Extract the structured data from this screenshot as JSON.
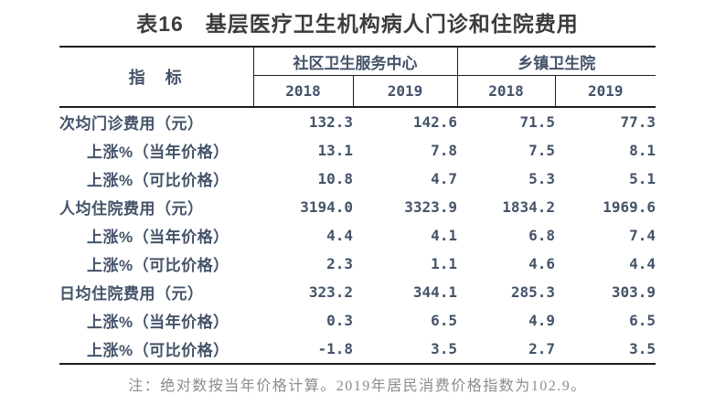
{
  "page": {
    "title": "表16　基层医疗卫生机构病人门诊和住院费用",
    "note": "注：绝对数按当年价格计算。2019年居民消费价格指数为102.9。"
  },
  "table": {
    "indicator_header": "指　标",
    "groups": [
      {
        "label": "社区卫生服务中心",
        "years": [
          "2018",
          "2019"
        ]
      },
      {
        "label": "乡镇卫生院",
        "years": [
          "2018",
          "2019"
        ]
      }
    ],
    "rows": [
      {
        "label": "次均门诊费用（元）",
        "indent": false,
        "values": [
          "132.3",
          "142.6",
          "71.5",
          "77.3"
        ]
      },
      {
        "label": "上涨%（当年价格）",
        "indent": true,
        "values": [
          "13.1",
          "7.8",
          "7.5",
          "8.1"
        ]
      },
      {
        "label": "上涨%（可比价格）",
        "indent": true,
        "values": [
          "10.8",
          "4.7",
          "5.3",
          "5.1"
        ]
      },
      {
        "label": "人均住院费用（元）",
        "indent": false,
        "values": [
          "3194.0",
          "3323.9",
          "1834.2",
          "1969.6"
        ]
      },
      {
        "label": "上涨%（当年价格）",
        "indent": true,
        "values": [
          "4.4",
          "4.1",
          "6.8",
          "7.4"
        ]
      },
      {
        "label": "上涨%（可比价格）",
        "indent": true,
        "values": [
          "2.3",
          "1.1",
          "4.6",
          "4.4"
        ]
      },
      {
        "label": "日均住院费用（元）",
        "indent": false,
        "values": [
          "323.2",
          "344.1",
          "285.3",
          "303.9"
        ]
      },
      {
        "label": "上涨%（当年价格）",
        "indent": true,
        "values": [
          "0.3",
          "6.5",
          "4.9",
          "6.5"
        ]
      },
      {
        "label": "上涨%（可比价格）",
        "indent": true,
        "values": [
          "-1.8",
          "3.5",
          "2.7",
          "3.5"
        ]
      }
    ]
  },
  "colors": {
    "title": "#3c3c3c",
    "table_text": "#44536a",
    "line": "#1c1c1c",
    "note": "#8c8c8c",
    "background": "#ffffff"
  }
}
